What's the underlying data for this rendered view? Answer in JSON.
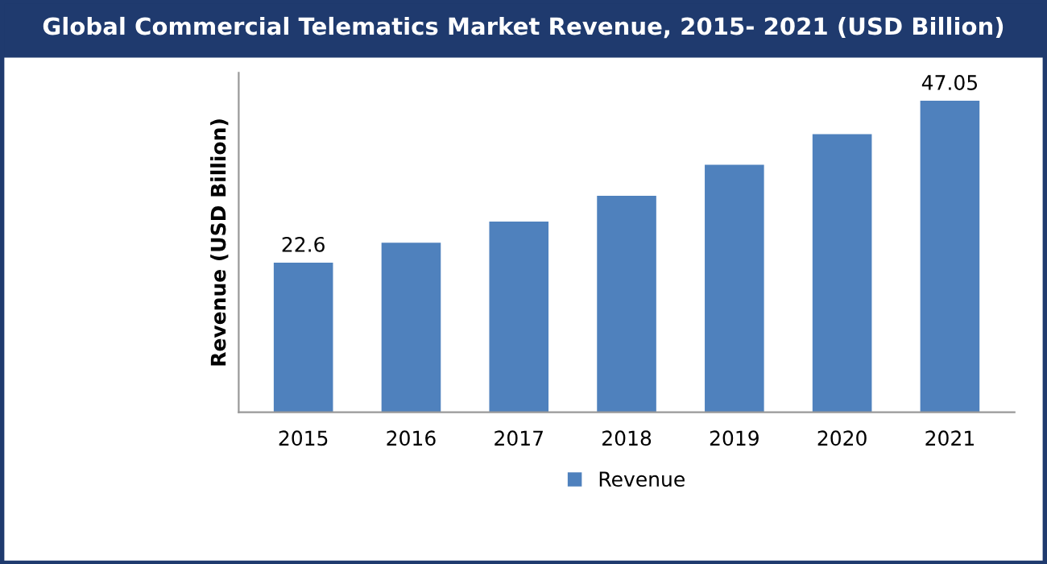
{
  "chart_data": {
    "type": "bar",
    "title": "Global Commercial Telematics Market Revenue, 2015- 2021 (USD Billion)",
    "ylabel": "Revenue (USD Billion)",
    "categories": [
      "2015",
      "2016",
      "2017",
      "2018",
      "2019",
      "2020",
      "2021"
    ],
    "series": [
      {
        "name": "Revenue",
        "color": "#4f81bd",
        "values": [
          22.6,
          25.6,
          28.8,
          32.7,
          37.4,
          42.0,
          47.05
        ],
        "value_labels": [
          "22.6",
          null,
          null,
          null,
          null,
          null,
          "47.05"
        ]
      }
    ],
    "tick_labels": "x",
    "grid": false,
    "legend": "bottom"
  }
}
